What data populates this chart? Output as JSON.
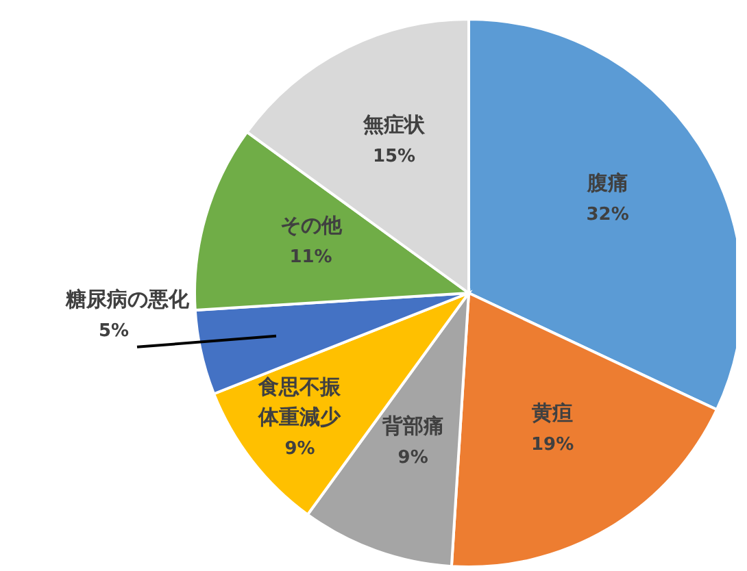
{
  "chart_data": {
    "type": "pie",
    "categories": [
      "腹痛",
      "黄疸",
      "背部痛",
      "食思不振体重減少",
      "糖尿病の悪化",
      "その他",
      "無症状"
    ],
    "values": [
      32,
      19,
      9,
      9,
      5,
      11,
      15
    ],
    "value_labels": [
      "32%",
      "19%",
      "9%",
      "9%",
      "5%",
      "11%",
      "15%"
    ],
    "colors": [
      "#5b9bd5",
      "#ed7d31",
      "#a5a5a5",
      "#ffc000",
      "#4472c4",
      "#70ad47",
      "#d9d9d9"
    ]
  }
}
